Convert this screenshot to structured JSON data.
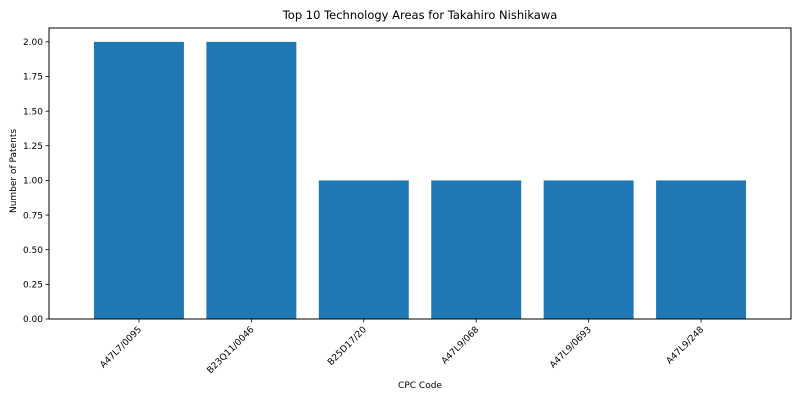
{
  "chart_data": {
    "type": "bar",
    "title": "Top 10 Technology Areas for Takahiro Nishikawa",
    "xlabel": "CPC Code",
    "ylabel": "Number of Patents",
    "categories": [
      "A47L7/0095",
      "B23Q11/0046",
      "B25D17/20",
      "A47L9/068",
      "A47L9/0693",
      "A47L9/248"
    ],
    "values": [
      2,
      2,
      1,
      1,
      1,
      1
    ],
    "ylim": [
      0,
      2.1
    ],
    "yticks": [
      "0.00",
      "0.25",
      "0.50",
      "0.75",
      "1.00",
      "1.25",
      "1.50",
      "1.75",
      "2.00"
    ],
    "bar_color": "#1f77b4",
    "grid": false,
    "legend": false
  }
}
